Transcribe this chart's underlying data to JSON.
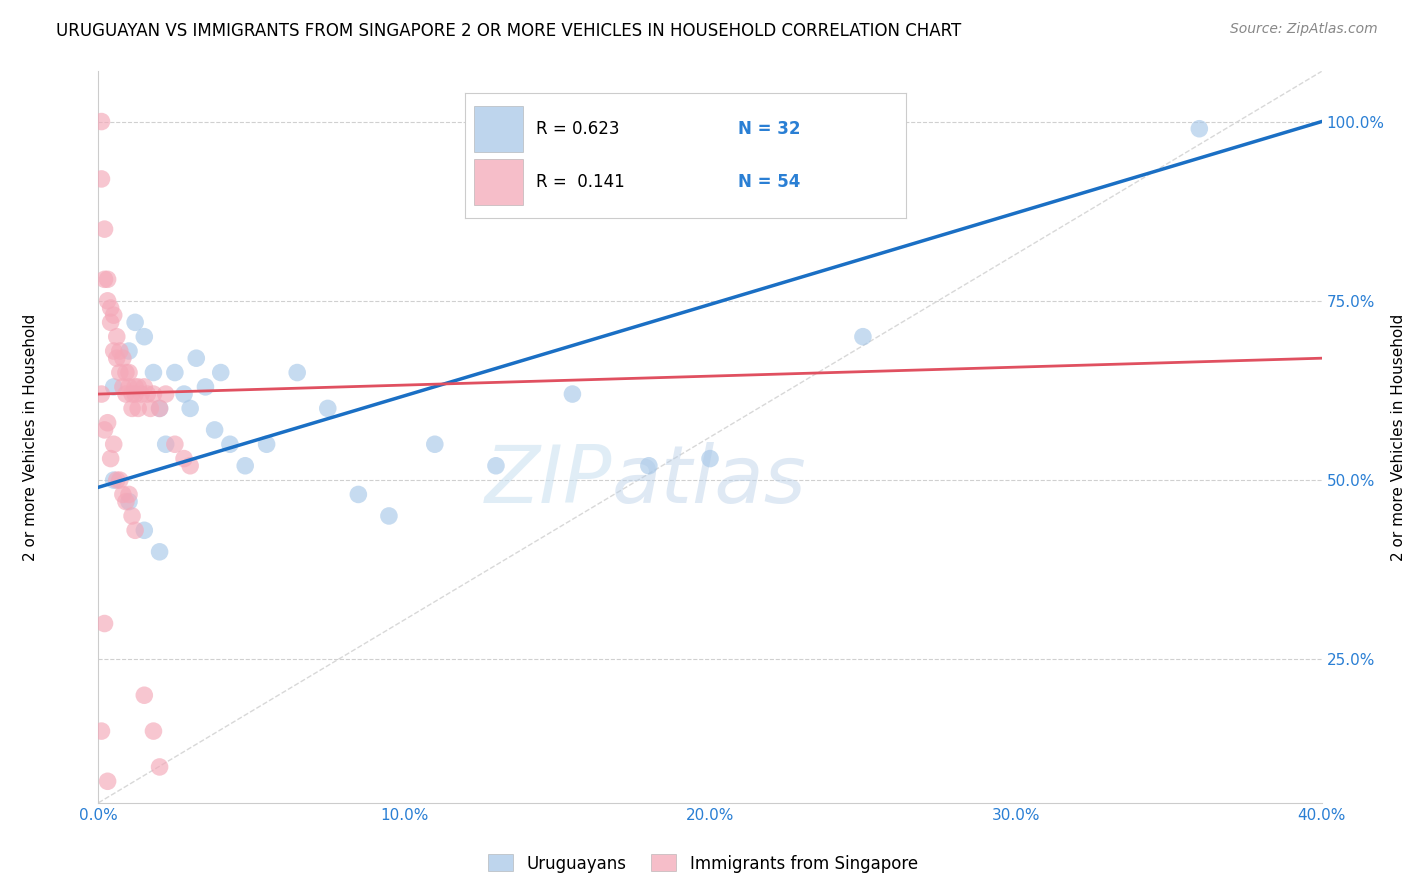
{
  "title": "URUGUAYAN VS IMMIGRANTS FROM SINGAPORE 2 OR MORE VEHICLES IN HOUSEHOLD CORRELATION CHART",
  "source": "Source: ZipAtlas.com",
  "ylabel": "2 or more Vehicles in Household",
  "xlabel_ticks": [
    "0.0%",
    "10.0%",
    "20.0%",
    "30.0%",
    "40.0%"
  ],
  "xlabel_vals": [
    0.0,
    0.1,
    0.2,
    0.3,
    0.4
  ],
  "ylabel_ticks": [
    "25.0%",
    "50.0%",
    "75.0%",
    "100.0%"
  ],
  "ylabel_vals": [
    25.0,
    50.0,
    75.0,
    100.0
  ],
  "xmin": 0.0,
  "xmax": 0.4,
  "ymin": 5.0,
  "ymax": 107.0,
  "blue_R": "0.623",
  "blue_N": "32",
  "pink_R": "0.141",
  "pink_N": "54",
  "blue_color": "#a8c8e8",
  "pink_color": "#f4a8b8",
  "blue_line_color": "#1a6fc4",
  "pink_line_color": "#e05060",
  "diagonal_color": "#d8d8d8",
  "watermark_zip": "ZIP",
  "watermark_atlas": "atlas",
  "blue_points_x": [
    0.005,
    0.01,
    0.012,
    0.015,
    0.018,
    0.02,
    0.022,
    0.025,
    0.028,
    0.03,
    0.032,
    0.035,
    0.038,
    0.04,
    0.043,
    0.048,
    0.055,
    0.065,
    0.075,
    0.085,
    0.095,
    0.11,
    0.13,
    0.155,
    0.18,
    0.2,
    0.005,
    0.01,
    0.015,
    0.02,
    0.36,
    0.25
  ],
  "blue_points_y": [
    63.0,
    68.0,
    72.0,
    70.0,
    65.0,
    60.0,
    55.0,
    65.0,
    62.0,
    60.0,
    67.0,
    63.0,
    57.0,
    65.0,
    55.0,
    52.0,
    55.0,
    65.0,
    60.0,
    48.0,
    45.0,
    55.0,
    52.0,
    62.0,
    52.0,
    53.0,
    50.0,
    47.0,
    43.0,
    40.0,
    99.0,
    70.0
  ],
  "pink_points_x": [
    0.001,
    0.001,
    0.002,
    0.002,
    0.003,
    0.003,
    0.004,
    0.004,
    0.005,
    0.005,
    0.006,
    0.006,
    0.007,
    0.007,
    0.008,
    0.008,
    0.009,
    0.009,
    0.01,
    0.01,
    0.011,
    0.011,
    0.012,
    0.012,
    0.013,
    0.013,
    0.014,
    0.015,
    0.016,
    0.017,
    0.018,
    0.02,
    0.022,
    0.025,
    0.028,
    0.03,
    0.001,
    0.002,
    0.003,
    0.004,
    0.005,
    0.006,
    0.007,
    0.008,
    0.009,
    0.01,
    0.011,
    0.012,
    0.015,
    0.018,
    0.02,
    0.002,
    0.003,
    0.001
  ],
  "pink_points_y": [
    100.0,
    92.0,
    85.0,
    78.0,
    78.0,
    75.0,
    74.0,
    72.0,
    73.0,
    68.0,
    70.0,
    67.0,
    68.0,
    65.0,
    67.0,
    63.0,
    65.0,
    62.0,
    63.0,
    65.0,
    62.0,
    60.0,
    63.0,
    62.0,
    63.0,
    60.0,
    62.0,
    63.0,
    62.0,
    60.0,
    62.0,
    60.0,
    62.0,
    55.0,
    53.0,
    52.0,
    62.0,
    57.0,
    58.0,
    53.0,
    55.0,
    50.0,
    50.0,
    48.0,
    47.0,
    48.0,
    45.0,
    43.0,
    20.0,
    15.0,
    10.0,
    30.0,
    8.0,
    15.0
  ],
  "blue_line_x": [
    0.0,
    0.4
  ],
  "blue_line_y": [
    49.0,
    100.0
  ],
  "pink_line_x": [
    0.0,
    0.4
  ],
  "pink_line_y": [
    62.0,
    67.0
  ]
}
